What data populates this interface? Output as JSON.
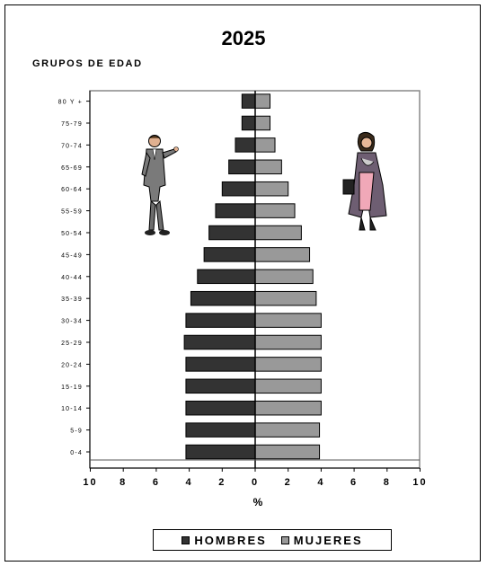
{
  "chart_data": {
    "type": "bar",
    "orientation": "horizontal",
    "title": "2025",
    "ylabel": "GRUPOS DE EDAD",
    "xlabel": "%",
    "xlim": [
      -10,
      10
    ],
    "x_ticks": [
      -10,
      -8,
      -6,
      -4,
      -2,
      0,
      2,
      4,
      6,
      8,
      10
    ],
    "x_tick_labels": [
      "10",
      "8",
      "6",
      "4",
      "2",
      "0",
      "2",
      "4",
      "6",
      "8",
      "10"
    ],
    "categories": [
      "0-4",
      "5-9",
      "10-14",
      "15-19",
      "20-24",
      "25-29",
      "30-34",
      "35-39",
      "40-44",
      "45-49",
      "50-54",
      "55-59",
      "60-64",
      "65-69",
      "70-74",
      "75-79",
      "80 Y +"
    ],
    "series": [
      {
        "name": "HOMBRES",
        "color": "#333333",
        "values": [
          4.2,
          4.2,
          4.2,
          4.2,
          4.2,
          4.3,
          4.2,
          3.9,
          3.5,
          3.1,
          2.8,
          2.4,
          2.0,
          1.6,
          1.2,
          0.8,
          0.8
        ]
      },
      {
        "name": "MUJERES",
        "color": "#999999",
        "values": [
          3.9,
          3.9,
          4.0,
          4.0,
          4.0,
          4.0,
          4.0,
          3.7,
          3.5,
          3.3,
          2.8,
          2.4,
          2.0,
          1.6,
          1.2,
          0.9,
          0.9
        ]
      }
    ],
    "grid": false,
    "legend_position": "bottom"
  },
  "legend": {
    "men": "HOMBRES",
    "women": "MUJERES"
  },
  "icons": {
    "left_figure": "man-clipart-icon",
    "right_figure": "woman-clipart-icon"
  }
}
